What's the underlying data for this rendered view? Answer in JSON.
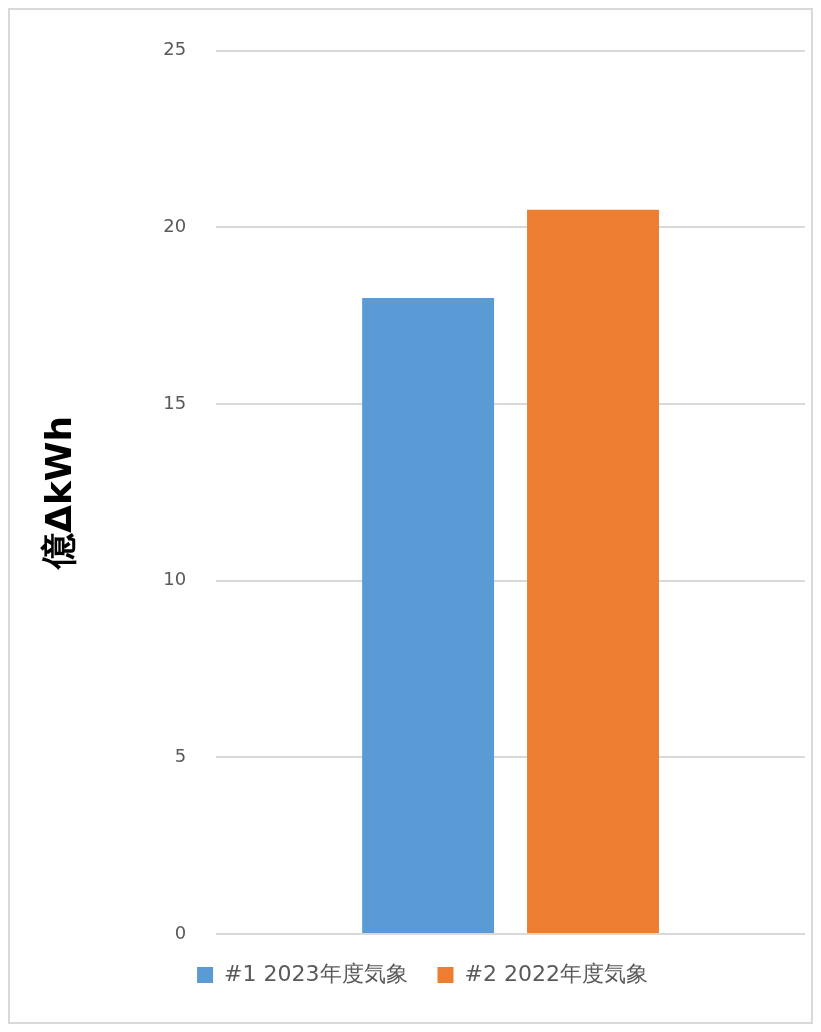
{
  "chart_data": {
    "type": "bar",
    "ylabel": "億ΔkWh",
    "categories": [
      null
    ],
    "series": [
      {
        "name": "#1 2023年度気象",
        "color": "#5b9bd5",
        "values": [
          18
        ]
      },
      {
        "name": "#2 2022年度気象",
        "color": "#ed7d31",
        "values": [
          20.5
        ]
      }
    ],
    "ylim": [
      0,
      25
    ],
    "yticks": [
      0,
      5,
      10,
      15,
      20,
      25
    ],
    "grid": "y",
    "legend": "bottom"
  }
}
